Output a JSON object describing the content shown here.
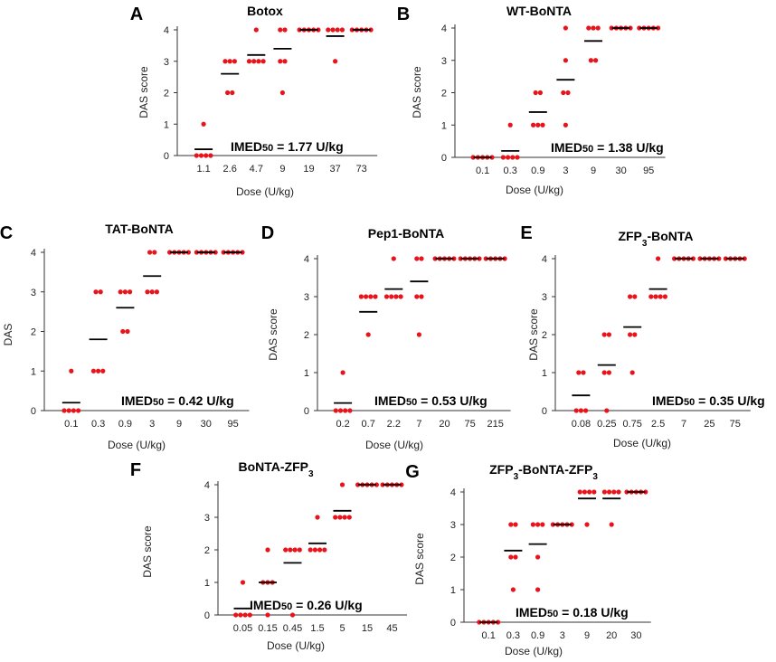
{
  "point_color": "#e8141c",
  "mean_color": "#000000",
  "axis_color": "#333333",
  "chart_data": [
    {
      "panel": "A",
      "type": "scatter",
      "title": "Botox",
      "xlabel": "Dose (U/kg)",
      "ylabel": "DAS score",
      "ylim": [
        0,
        4
      ],
      "yticks": [
        0,
        1,
        2,
        3,
        4
      ],
      "categories": [
        "1.1",
        "2.6",
        "4.7",
        "9",
        "19",
        "37",
        "73"
      ],
      "points": [
        [
          0,
          0,
          0,
          0,
          1
        ],
        [
          2,
          2,
          3,
          3,
          3
        ],
        [
          3,
          3,
          3,
          3,
          4
        ],
        [
          2,
          3,
          3,
          4,
          4
        ],
        [
          4,
          4,
          4,
          4,
          4
        ],
        [
          3,
          4,
          4,
          4,
          4
        ],
        [
          4,
          4,
          4,
          4,
          4
        ]
      ],
      "means": [
        0.2,
        2.6,
        3.2,
        3.4,
        4,
        3.8,
        4
      ],
      "imed_prefix": "IMED",
      "imed_sub": "50",
      "imed_value": "= 1.77 U/kg"
    },
    {
      "panel": "B",
      "type": "scatter",
      "title": "WT-BoNTA",
      "xlabel": "Dose (U/kg)",
      "ylabel": "DAS score",
      "ylim": [
        0,
        4
      ],
      "yticks": [
        0,
        1,
        2,
        3,
        4
      ],
      "categories": [
        "0.1",
        "0.3",
        "0.9",
        "3",
        "9",
        "30",
        "95"
      ],
      "points": [
        [
          0,
          0,
          0,
          0,
          0
        ],
        [
          0,
          0,
          0,
          0,
          1
        ],
        [
          1,
          1,
          1,
          2,
          2
        ],
        [
          1,
          2,
          2,
          3,
          4
        ],
        [
          3,
          3,
          4,
          4,
          4
        ],
        [
          4,
          4,
          4,
          4,
          4
        ],
        [
          4,
          4,
          4,
          4,
          4
        ]
      ],
      "means": [
        0,
        0.2,
        1.4,
        2.4,
        3.6,
        4,
        4
      ],
      "imed_prefix": "IMED",
      "imed_sub": "50",
      "imed_value": "= 1.38 U/kg"
    },
    {
      "panel": "C",
      "type": "scatter",
      "title": "TAT-BoNTA",
      "xlabel": "Dose (U/kg)",
      "ylabel": "DAS",
      "ylim": [
        0,
        4
      ],
      "yticks": [
        0,
        1,
        2,
        3,
        4
      ],
      "categories": [
        "0.1",
        "0.3",
        "0.9",
        "3",
        "9",
        "30",
        "95"
      ],
      "points": [
        [
          0,
          0,
          0,
          0,
          1
        ],
        [
          1,
          1,
          1,
          3,
          3
        ],
        [
          2,
          2,
          3,
          3,
          3
        ],
        [
          3,
          3,
          3,
          4,
          4
        ],
        [
          4,
          4,
          4,
          4,
          4
        ],
        [
          4,
          4,
          4,
          4,
          4
        ],
        [
          4,
          4,
          4,
          4,
          4
        ]
      ],
      "means": [
        0.2,
        1.8,
        2.6,
        3.4,
        4,
        4,
        4
      ],
      "imed_prefix": "IMED",
      "imed_sub": "50",
      "imed_value": "= 0.42 U/kg"
    },
    {
      "panel": "D",
      "type": "scatter",
      "title": "Pep1-BoNTA",
      "xlabel": "Dose (U/kg)",
      "ylabel": "DAS score",
      "ylim": [
        0,
        4
      ],
      "yticks": [
        0,
        1,
        2,
        3,
        4
      ],
      "categories": [
        "0.2",
        "0.7",
        "2.2",
        "7",
        "20",
        "75",
        "215"
      ],
      "points": [
        [
          0,
          0,
          0,
          0,
          1
        ],
        [
          2,
          3,
          3,
          3,
          3
        ],
        [
          3,
          3,
          3,
          3,
          4
        ],
        [
          2,
          3,
          3,
          4,
          4
        ],
        [
          4,
          4,
          4,
          4,
          4
        ],
        [
          4,
          4,
          4,
          4,
          4
        ],
        [
          4,
          4,
          4,
          4,
          4
        ]
      ],
      "means": [
        0.2,
        2.6,
        3.2,
        3.4,
        4,
        4,
        4
      ],
      "imed_prefix": "IMED",
      "imed_sub": "50",
      "imed_value": "= 0.53 U/kg"
    },
    {
      "panel": "E",
      "type": "scatter",
      "title": "ZFP",
      "title_sub": "3",
      "title_rest": "-BoNTA",
      "xlabel": "Dose (U/kg)",
      "ylabel": "DAS score",
      "ylim": [
        0,
        4
      ],
      "yticks": [
        0,
        1,
        2,
        3,
        4
      ],
      "categories": [
        "0.08",
        "0.25",
        "0.75",
        "2.5",
        "7",
        "25",
        "75"
      ],
      "points": [
        [
          0,
          0,
          0,
          1,
          1
        ],
        [
          0,
          1,
          1,
          2,
          2
        ],
        [
          1,
          2,
          2,
          3,
          3
        ],
        [
          3,
          3,
          3,
          3,
          4
        ],
        [
          4,
          4,
          4,
          4,
          4
        ],
        [
          4,
          4,
          4,
          4,
          4
        ],
        [
          4,
          4,
          4,
          4,
          4
        ]
      ],
      "means": [
        0.4,
        1.2,
        2.2,
        3.2,
        4,
        4,
        4
      ],
      "imed_prefix": "IMED",
      "imed_sub": "50",
      "imed_value": "= 0.35 U/kg"
    },
    {
      "panel": "F",
      "type": "scatter",
      "title": "BoNTA-ZFP",
      "title_sub": "3",
      "title_rest": "",
      "xlabel": "Dose (U/kg)",
      "ylabel": "DAS score",
      "ylim": [
        0,
        4
      ],
      "yticks": [
        0,
        1,
        2,
        3,
        4
      ],
      "categories": [
        "0.05",
        "0.15",
        "0.45",
        "1.5",
        "5",
        "15",
        "45"
      ],
      "points": [
        [
          0,
          0,
          0,
          0,
          1
        ],
        [
          0,
          1,
          1,
          1,
          2
        ],
        [
          0,
          2,
          2,
          2,
          2
        ],
        [
          2,
          2,
          2,
          2,
          3
        ],
        [
          3,
          3,
          3,
          3,
          4
        ],
        [
          4,
          4,
          4,
          4,
          4
        ],
        [
          4,
          4,
          4,
          4,
          4
        ]
      ],
      "means": [
        0.2,
        1,
        1.6,
        2.2,
        3.2,
        4,
        4
      ],
      "imed_prefix": "IMED",
      "imed_sub": "50",
      "imed_value": "= 0.26 U/kg"
    },
    {
      "panel": "G",
      "type": "scatter",
      "title": "ZFP",
      "title_sub": "3",
      "title_rest": "-BoNTA-ZFP",
      "title_sub2": "3",
      "xlabel": "Dose (U/kg)",
      "ylabel": "DAS score",
      "ylim": [
        0,
        4
      ],
      "yticks": [
        0,
        1,
        2,
        3,
        4
      ],
      "categories": [
        "0.1",
        "0.3",
        "0.9",
        "3",
        "9",
        "20",
        "30"
      ],
      "points": [
        [
          0,
          0,
          0,
          0,
          0
        ],
        [
          1,
          2,
          2,
          3,
          3
        ],
        [
          1,
          2,
          3,
          3,
          3
        ],
        [
          3,
          3,
          3,
          3,
          3
        ],
        [
          3,
          4,
          4,
          4,
          4
        ],
        [
          3,
          4,
          4,
          4,
          4
        ],
        [
          4,
          4,
          4,
          4,
          4
        ]
      ],
      "means": [
        0,
        2.2,
        2.4,
        3,
        3.8,
        3.8,
        4
      ],
      "imed_prefix": "IMED",
      "imed_sub": "50",
      "imed_value": "= 0.18 U/kg"
    }
  ]
}
